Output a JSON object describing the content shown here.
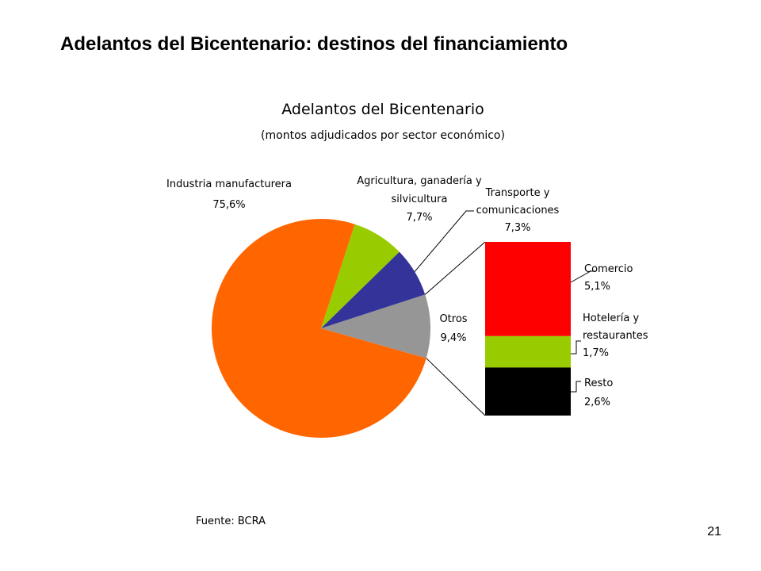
{
  "slide": {
    "title": "Adelantos del Bicentenario: destinos del financiamiento",
    "page_number": "21"
  },
  "chart_data": {
    "type": "pie",
    "title": "Adelantos del Bicentenario",
    "subtitle": "(montos adjudicados por sector económico)",
    "source": "Fuente: BCRA",
    "slices": [
      {
        "label_lines": [
          "Industria manufacturera"
        ],
        "pct_label": "75,6%",
        "value": 75.6,
        "color": "#ff6600"
      },
      {
        "label_lines": [
          "Agricultura, ganadería y",
          "silvicultura"
        ],
        "pct_label": "7,7%",
        "value": 7.7,
        "color": "#99cc00"
      },
      {
        "label_lines": [
          "Transporte y",
          "comunicaciones"
        ],
        "pct_label": "7,3%",
        "value": 7.3,
        "color": "#333399"
      },
      {
        "label_lines": [
          "Otros"
        ],
        "pct_label": "9,4%",
        "value": 9.4,
        "color": "#969696"
      }
    ],
    "breakdown": {
      "of": "Otros",
      "segments": [
        {
          "label_lines": [
            "Comercio"
          ],
          "pct_label": "5,1%",
          "value": 5.1,
          "color": "#ff0000"
        },
        {
          "label_lines": [
            "Hotelería y",
            "restaurantes"
          ],
          "pct_label": "1,7%",
          "value": 1.7,
          "color": "#99cc00"
        },
        {
          "label_lines": [
            "Resto"
          ],
          "pct_label": "2,6%",
          "value": 2.6,
          "color": "#000000"
        }
      ]
    }
  }
}
